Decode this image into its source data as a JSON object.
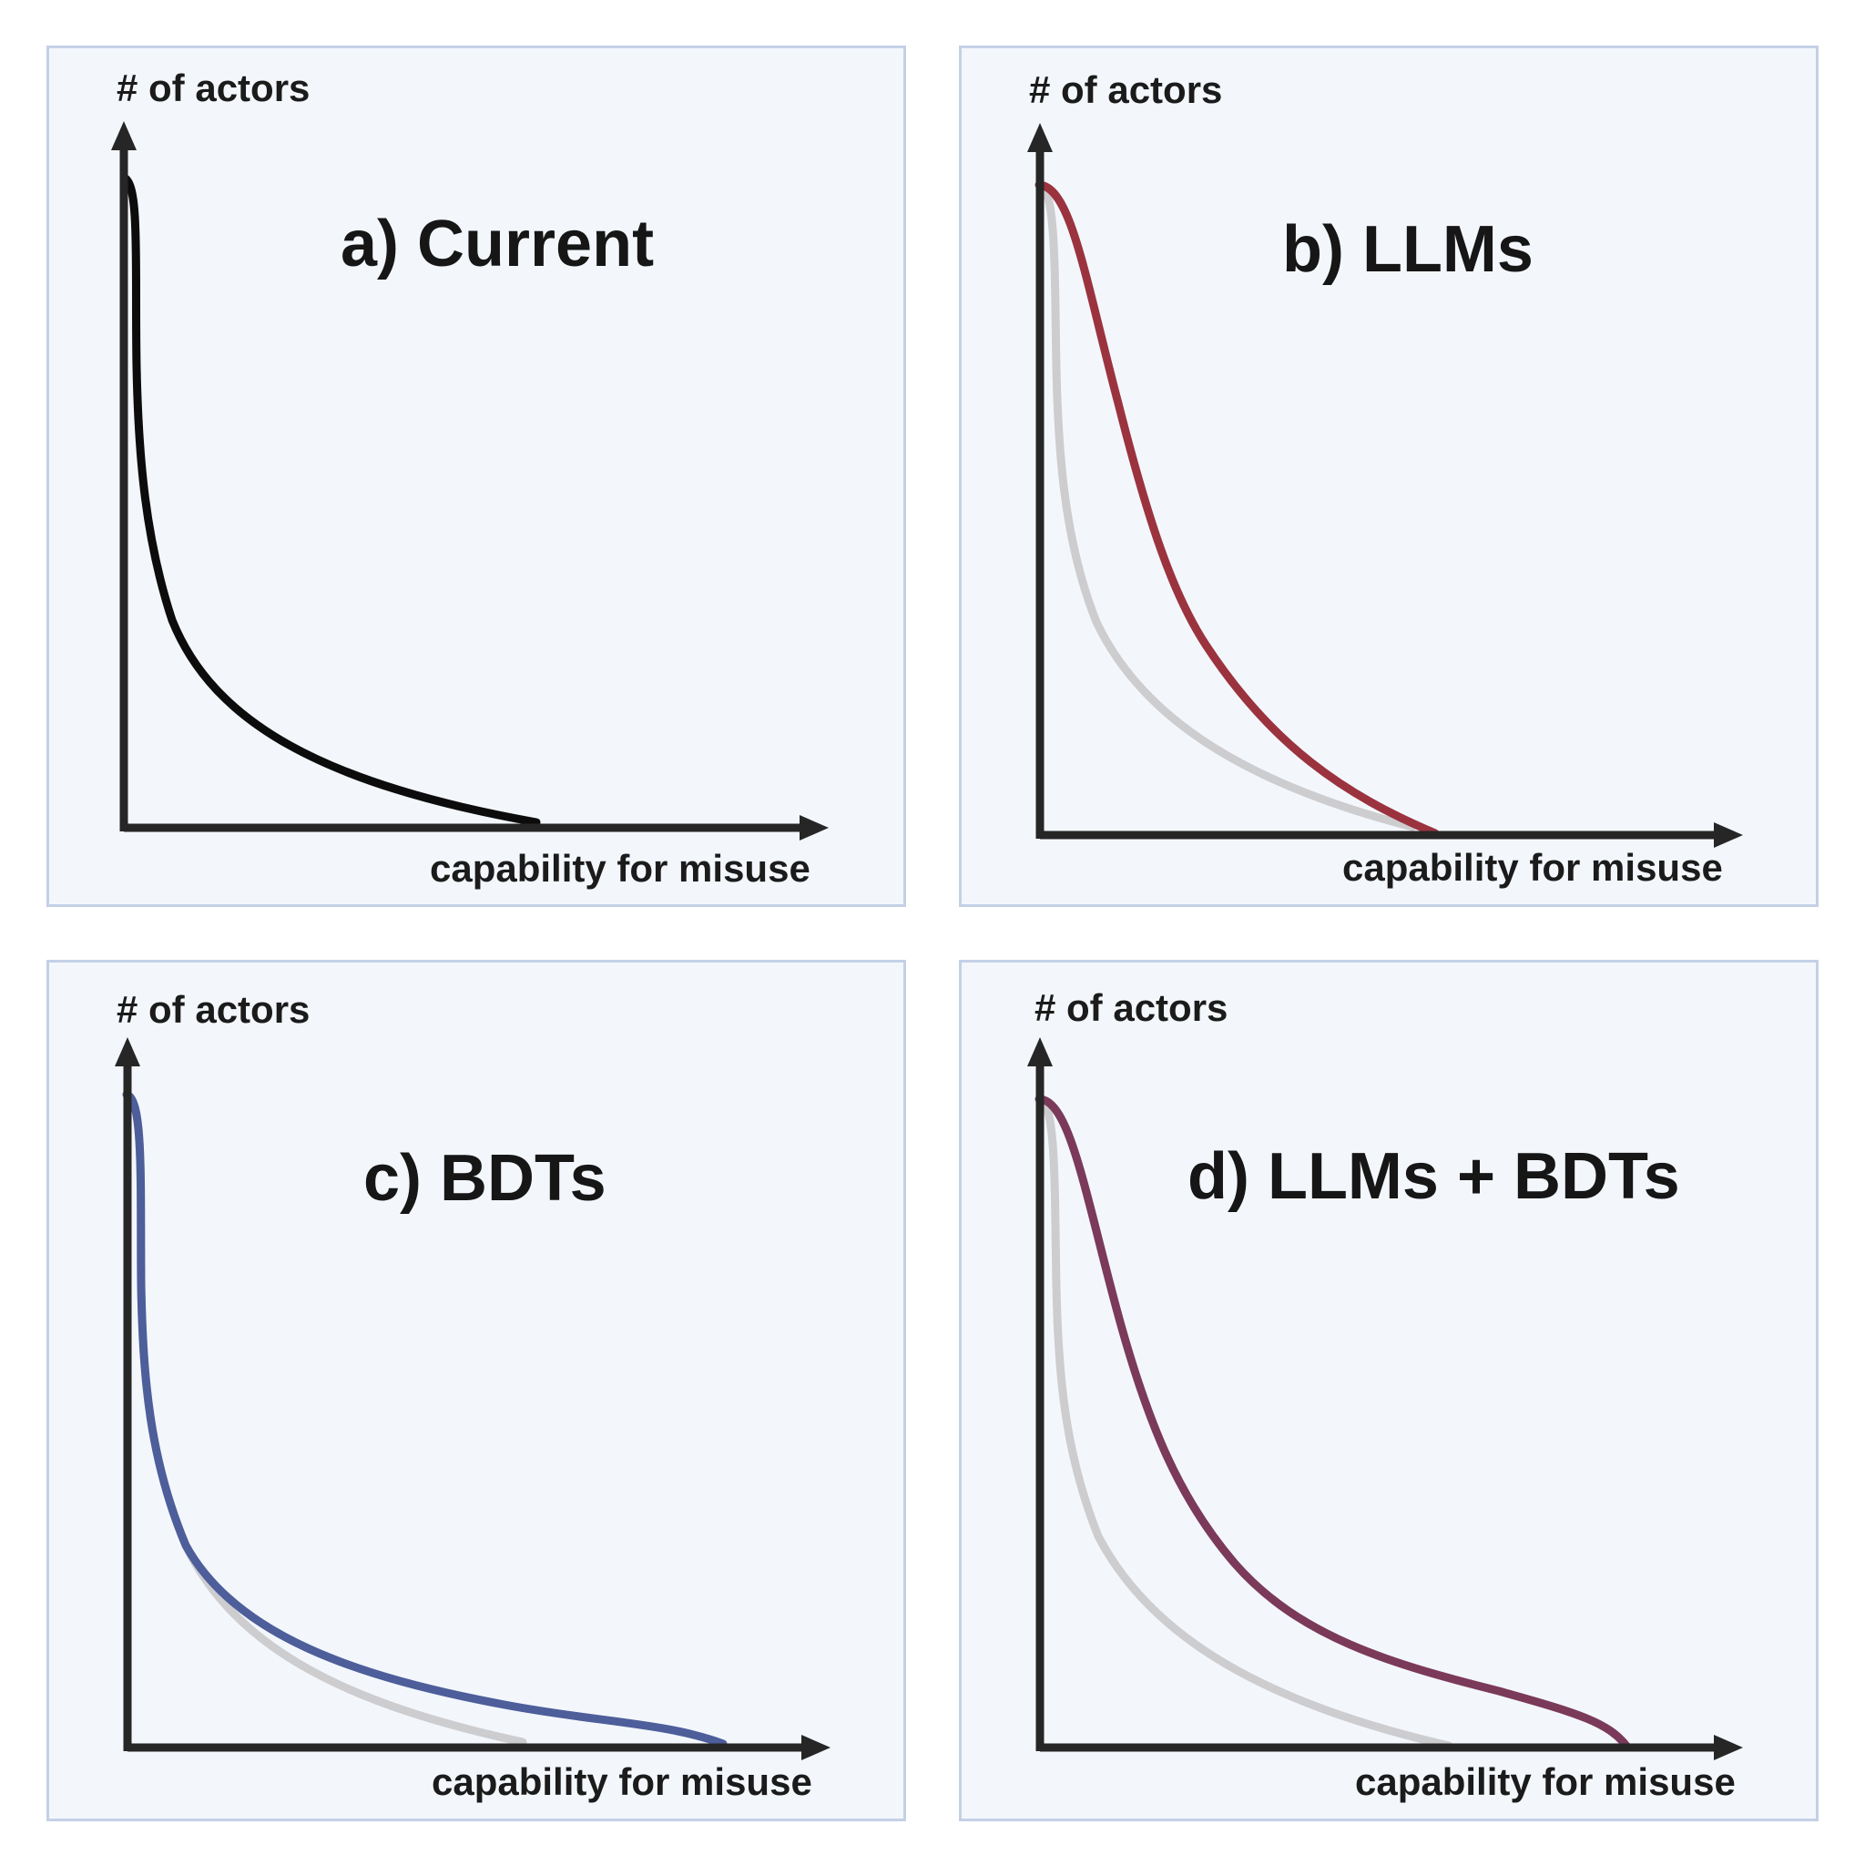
{
  "figure": {
    "axis_colors": {
      "axis": "#262626",
      "baseline_curve": "#cdcdd0"
    },
    "panels": [
      {
        "id": "a",
        "title": "a) Current",
        "ylabel": "# of actors",
        "xlabel": "capability for misuse",
        "curve_color": "#0c0c0c",
        "show_baseline": false
      },
      {
        "id": "b",
        "title": "b) LLMs",
        "ylabel": "# of actors",
        "xlabel": "capability for misuse",
        "curve_color": "#9b333f",
        "show_baseline": true
      },
      {
        "id": "c",
        "title": "c) BDTs",
        "ylabel": "# of actors",
        "xlabel": "capability for misuse",
        "curve_color": "#4d5e9a",
        "show_baseline": true
      },
      {
        "id": "d",
        "title": "d) LLMs + BDTs",
        "ylabel": "# of actors",
        "xlabel": "capability for misuse",
        "curve_color": "#7b3a5a",
        "show_baseline": true
      }
    ]
  }
}
